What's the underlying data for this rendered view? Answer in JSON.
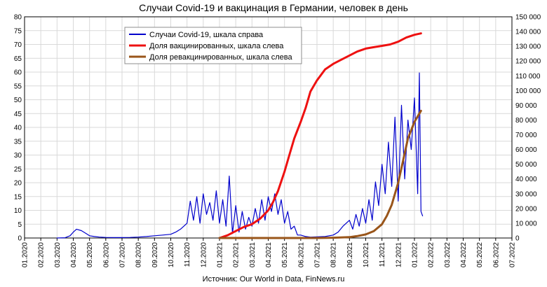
{
  "chart_data": {
    "type": "line",
    "title": "Случаи Covid-19 и вакцинация в Германии, человек в день",
    "source": "Источник: Our World in Data, FinNews.ru",
    "x_tick_labels": [
      "01.2020",
      "02.2020",
      "03.2020",
      "04.2020",
      "05.2020",
      "06.2020",
      "07.2020",
      "08.2020",
      "09.2020",
      "10.2020",
      "11.2020",
      "12.2020",
      "01.2021",
      "02.2021",
      "03.2021",
      "04.2021",
      "05.2021",
      "06.2021",
      "07.2021",
      "08.2021",
      "09.2021",
      "10.2021",
      "11.2021",
      "12.2021",
      "01.2022",
      "02.2022",
      "03.2022",
      "04.2022",
      "05.2022",
      "06.2022",
      "07.2022"
    ],
    "y_left": {
      "ylim": [
        0,
        80
      ],
      "ticks": [
        "0",
        "5",
        "10",
        "15",
        "20",
        "25",
        "30",
        "35",
        "40",
        "45",
        "50",
        "55",
        "60",
        "65",
        "70",
        "75",
        "80"
      ]
    },
    "y_right": {
      "ylim": [
        0,
        150000
      ],
      "ticks": [
        "0",
        "10 000",
        "20 000",
        "30 000",
        "40 000",
        "50 000",
        "60 000",
        "70 000",
        "80 000",
        "90 000",
        "100 000",
        "110 000",
        "120 000",
        "130 000",
        "140 000",
        "150 000"
      ]
    },
    "grid": true,
    "legend_position": "top-center",
    "series": [
      {
        "name": "Случаи Covid-19, шкала справа",
        "color": "#0000cc",
        "axis": "right",
        "x": [
          2.0,
          2.5,
          2.8,
          3.0,
          3.2,
          3.5,
          3.8,
          4.0,
          4.3,
          4.6,
          5.0,
          5.5,
          6.0,
          6.5,
          7.0,
          7.5,
          8.0,
          8.5,
          9.0,
          9.3,
          9.6,
          10.0,
          10.2,
          10.4,
          10.6,
          10.8,
          11.0,
          11.2,
          11.4,
          11.6,
          11.8,
          12.0,
          12.2,
          12.4,
          12.6,
          12.8,
          13.0,
          13.2,
          13.4,
          13.6,
          13.8,
          14.0,
          14.2,
          14.4,
          14.6,
          14.8,
          15.0,
          15.2,
          15.4,
          15.6,
          15.8,
          16.0,
          16.2,
          16.4,
          16.6,
          16.8,
          17.0,
          17.3,
          17.6,
          18.0,
          18.5,
          19.0,
          19.3,
          19.6,
          20.0,
          20.2,
          20.4,
          20.6,
          20.8,
          21.0,
          21.2,
          21.4,
          21.6,
          21.8,
          22.0,
          22.2,
          22.4,
          22.6,
          22.8,
          23.0,
          23.2,
          23.4,
          23.6,
          23.8,
          24.0,
          24.2,
          24.3,
          24.4,
          24.5
        ],
        "values": [
          0,
          200,
          1500,
          4000,
          6000,
          5000,
          3000,
          1500,
          1000,
          600,
          400,
          300,
          300,
          400,
          600,
          1000,
          1500,
          2000,
          2500,
          4000,
          6000,
          10000,
          25000,
          12000,
          28000,
          10000,
          30000,
          16000,
          24000,
          12000,
          32000,
          10000,
          26000,
          8000,
          42000,
          3000,
          22000,
          4000,
          18000,
          6000,
          14000,
          8000,
          20000,
          10000,
          26000,
          12000,
          28000,
          18000,
          30000,
          16000,
          26000,
          10000,
          18000,
          6000,
          8000,
          2000,
          2000,
          1000,
          600,
          800,
          1000,
          2000,
          4000,
          8000,
          12000,
          6000,
          16000,
          8000,
          20000,
          10000,
          26000,
          12000,
          38000,
          22000,
          50000,
          30000,
          65000,
          35000,
          82000,
          25000,
          90000,
          40000,
          80000,
          60000,
          95000,
          30000,
          112000,
          18000,
          15000
        ]
      },
      {
        "name": "Доля вакцинированных, шкала слева",
        "color": "#ee1111",
        "axis": "left",
        "x": [
          12.0,
          12.5,
          13.0,
          13.5,
          14.0,
          14.5,
          15.0,
          15.3,
          15.6,
          16.0,
          16.3,
          16.6,
          17.0,
          17.3,
          17.6,
          18.0,
          18.5,
          19.0,
          19.5,
          20.0,
          20.5,
          21.0,
          21.5,
          22.0,
          22.5,
          23.0,
          23.5,
          24.0,
          24.4
        ],
        "values": [
          0,
          1,
          2.5,
          4,
          5,
          7,
          10,
          13,
          17,
          24,
          30,
          36,
          42,
          47,
          53,
          57,
          61,
          63,
          64.5,
          66,
          67.5,
          68.5,
          69,
          69.5,
          70,
          71,
          72.5,
          73.5,
          74
        ]
      },
      {
        "name": "Доля ревакцинированных, шкала слева",
        "color": "#99551a",
        "axis": "left",
        "x": [
          12.0,
          13.0,
          14.0,
          15.0,
          16.0,
          17.0,
          18.0,
          19.0,
          20.0,
          20.5,
          21.0,
          21.5,
          22.0,
          22.3,
          22.6,
          23.0,
          23.3,
          23.6,
          24.0,
          24.2,
          24.4
        ],
        "values": [
          0,
          0,
          0,
          0,
          0,
          0,
          0,
          0.1,
          0.3,
          0.7,
          1.3,
          2.5,
          5,
          8,
          12,
          20,
          28,
          36,
          42,
          44,
          46
        ]
      }
    ]
  }
}
